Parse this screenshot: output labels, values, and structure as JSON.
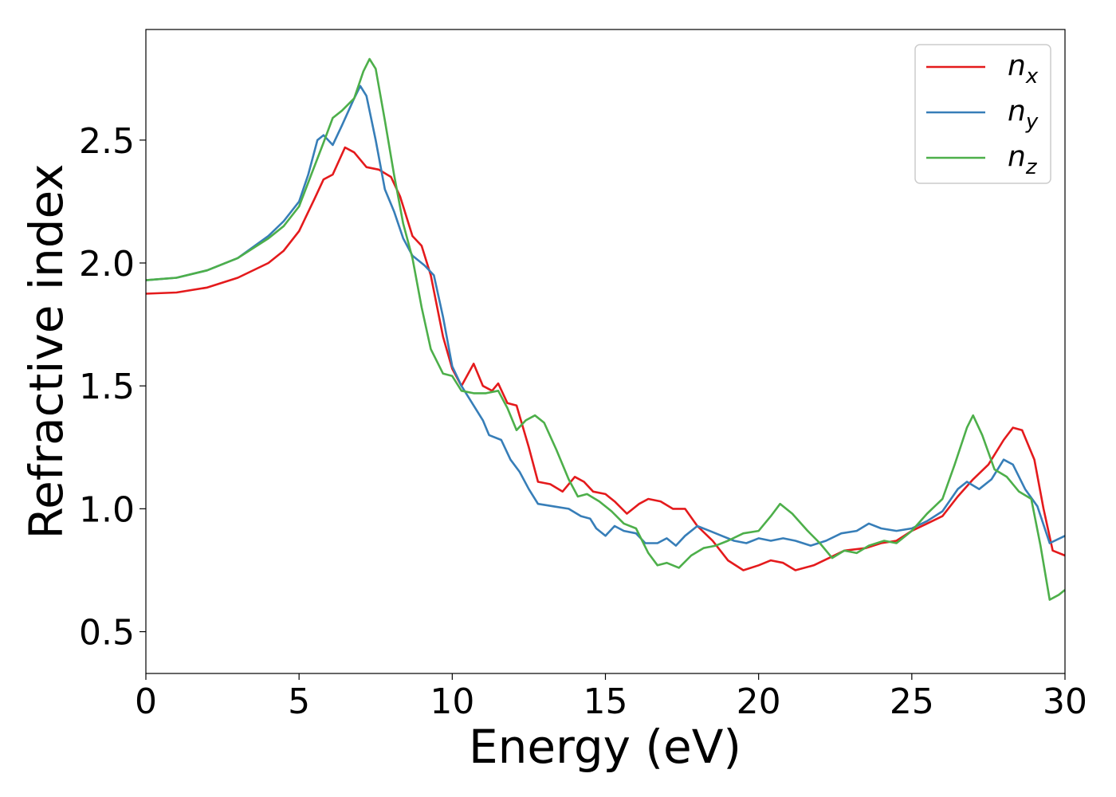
{
  "chart_data": {
    "type": "line",
    "title": "",
    "xlabel": "Energy (eV)",
    "ylabel": "Refractive index",
    "xlim": [
      0,
      30
    ],
    "ylim": [
      0.33,
      2.95
    ],
    "xticks": [
      0,
      5,
      10,
      15,
      20,
      25,
      30
    ],
    "yticks": [
      0.5,
      1.0,
      1.5,
      2.0,
      2.5
    ],
    "xtick_labels": [
      "0",
      "5",
      "10",
      "15",
      "20",
      "25",
      "30"
    ],
    "ytick_labels": [
      "0.5",
      "1.0",
      "1.5",
      "2.0",
      "2.5"
    ],
    "grid": false,
    "legend_position": "top-right",
    "series": [
      {
        "name": "n",
        "subscript": "x",
        "color": "#e41a1c",
        "points": [
          [
            0,
            1.875
          ],
          [
            1,
            1.88
          ],
          [
            2,
            1.9
          ],
          [
            3,
            1.94
          ],
          [
            4,
            2.0
          ],
          [
            4.5,
            2.05
          ],
          [
            5,
            2.13
          ],
          [
            5.5,
            2.26
          ],
          [
            5.8,
            2.34
          ],
          [
            6.1,
            2.36
          ],
          [
            6.5,
            2.47
          ],
          [
            6.8,
            2.45
          ],
          [
            7.2,
            2.39
          ],
          [
            7.6,
            2.38
          ],
          [
            8,
            2.35
          ],
          [
            8.3,
            2.27
          ],
          [
            8.7,
            2.11
          ],
          [
            9,
            2.07
          ],
          [
            9.3,
            1.95
          ],
          [
            9.7,
            1.7
          ],
          [
            10,
            1.57
          ],
          [
            10.3,
            1.5
          ],
          [
            10.7,
            1.59
          ],
          [
            11,
            1.5
          ],
          [
            11.3,
            1.48
          ],
          [
            11.5,
            1.51
          ],
          [
            11.8,
            1.43
          ],
          [
            12.1,
            1.42
          ],
          [
            12.5,
            1.25
          ],
          [
            12.8,
            1.11
          ],
          [
            13.2,
            1.1
          ],
          [
            13.6,
            1.07
          ],
          [
            14,
            1.13
          ],
          [
            14.3,
            1.11
          ],
          [
            14.6,
            1.07
          ],
          [
            15,
            1.06
          ],
          [
            15.3,
            1.03
          ],
          [
            15.7,
            0.98
          ],
          [
            16.1,
            1.02
          ],
          [
            16.4,
            1.04
          ],
          [
            16.8,
            1.03
          ],
          [
            17.2,
            1.0
          ],
          [
            17.6,
            1.0
          ],
          [
            18,
            0.93
          ],
          [
            18.5,
            0.87
          ],
          [
            19,
            0.79
          ],
          [
            19.5,
            0.75
          ],
          [
            20,
            0.77
          ],
          [
            20.4,
            0.79
          ],
          [
            20.8,
            0.78
          ],
          [
            21.2,
            0.75
          ],
          [
            21.8,
            0.77
          ],
          [
            22.3,
            0.8
          ],
          [
            22.8,
            0.83
          ],
          [
            23.5,
            0.84
          ],
          [
            24,
            0.86
          ],
          [
            24.5,
            0.87
          ],
          [
            25,
            0.91
          ],
          [
            25.5,
            0.94
          ],
          [
            26,
            0.97
          ],
          [
            26.5,
            1.05
          ],
          [
            27,
            1.12
          ],
          [
            27.5,
            1.18
          ],
          [
            28,
            1.28
          ],
          [
            28.3,
            1.33
          ],
          [
            28.6,
            1.32
          ],
          [
            29,
            1.2
          ],
          [
            29.3,
            1.0
          ],
          [
            29.6,
            0.83
          ],
          [
            30,
            0.81
          ]
        ]
      },
      {
        "name": "n",
        "subscript": "y",
        "color": "#377eb8",
        "points": [
          [
            0,
            1.93
          ],
          [
            1,
            1.94
          ],
          [
            2,
            1.97
          ],
          [
            3,
            2.02
          ],
          [
            4,
            2.11
          ],
          [
            4.5,
            2.17
          ],
          [
            5,
            2.25
          ],
          [
            5.3,
            2.36
          ],
          [
            5.6,
            2.5
          ],
          [
            5.8,
            2.52
          ],
          [
            6.1,
            2.48
          ],
          [
            6.4,
            2.56
          ],
          [
            6.8,
            2.67
          ],
          [
            7,
            2.72
          ],
          [
            7.2,
            2.68
          ],
          [
            7.5,
            2.5
          ],
          [
            7.8,
            2.3
          ],
          [
            8.1,
            2.21
          ],
          [
            8.4,
            2.1
          ],
          [
            8.7,
            2.03
          ],
          [
            9.1,
            1.99
          ],
          [
            9.4,
            1.95
          ],
          [
            9.7,
            1.78
          ],
          [
            10,
            1.58
          ],
          [
            10.3,
            1.5
          ],
          [
            10.7,
            1.42
          ],
          [
            11,
            1.36
          ],
          [
            11.2,
            1.3
          ],
          [
            11.6,
            1.28
          ],
          [
            11.9,
            1.2
          ],
          [
            12.2,
            1.15
          ],
          [
            12.5,
            1.08
          ],
          [
            12.8,
            1.02
          ],
          [
            13.3,
            1.01
          ],
          [
            13.8,
            1.0
          ],
          [
            14.2,
            0.97
          ],
          [
            14.5,
            0.96
          ],
          [
            14.7,
            0.92
          ],
          [
            15,
            0.89
          ],
          [
            15.3,
            0.93
          ],
          [
            15.6,
            0.91
          ],
          [
            16,
            0.9
          ],
          [
            16.3,
            0.86
          ],
          [
            16.7,
            0.86
          ],
          [
            17,
            0.88
          ],
          [
            17.3,
            0.85
          ],
          [
            17.6,
            0.89
          ],
          [
            18,
            0.93
          ],
          [
            18.4,
            0.91
          ],
          [
            18.8,
            0.89
          ],
          [
            19.2,
            0.87
          ],
          [
            19.6,
            0.86
          ],
          [
            20,
            0.88
          ],
          [
            20.4,
            0.87
          ],
          [
            20.8,
            0.88
          ],
          [
            21.2,
            0.87
          ],
          [
            21.7,
            0.85
          ],
          [
            22.2,
            0.87
          ],
          [
            22.7,
            0.9
          ],
          [
            23.2,
            0.91
          ],
          [
            23.6,
            0.94
          ],
          [
            24,
            0.92
          ],
          [
            24.5,
            0.91
          ],
          [
            25,
            0.92
          ],
          [
            25.5,
            0.95
          ],
          [
            26,
            0.99
          ],
          [
            26.5,
            1.08
          ],
          [
            26.8,
            1.11
          ],
          [
            27.2,
            1.08
          ],
          [
            27.6,
            1.12
          ],
          [
            28,
            1.2
          ],
          [
            28.3,
            1.18
          ],
          [
            28.7,
            1.08
          ],
          [
            29.1,
            1.01
          ],
          [
            29.5,
            0.86
          ],
          [
            30,
            0.89
          ]
        ]
      },
      {
        "name": "n",
        "subscript": "z",
        "color": "#4daf4a",
        "points": [
          [
            0,
            1.93
          ],
          [
            1,
            1.94
          ],
          [
            2,
            1.97
          ],
          [
            3,
            2.02
          ],
          [
            4,
            2.1
          ],
          [
            4.5,
            2.15
          ],
          [
            5,
            2.23
          ],
          [
            5.4,
            2.36
          ],
          [
            5.8,
            2.49
          ],
          [
            6.1,
            2.59
          ],
          [
            6.4,
            2.62
          ],
          [
            6.8,
            2.67
          ],
          [
            7.1,
            2.78
          ],
          [
            7.3,
            2.83
          ],
          [
            7.5,
            2.79
          ],
          [
            7.8,
            2.58
          ],
          [
            8.1,
            2.36
          ],
          [
            8.4,
            2.16
          ],
          [
            8.7,
            2.02
          ],
          [
            9,
            1.82
          ],
          [
            9.3,
            1.65
          ],
          [
            9.7,
            1.55
          ],
          [
            10,
            1.54
          ],
          [
            10.3,
            1.48
          ],
          [
            10.7,
            1.47
          ],
          [
            11.1,
            1.47
          ],
          [
            11.5,
            1.48
          ],
          [
            11.8,
            1.41
          ],
          [
            12.1,
            1.32
          ],
          [
            12.4,
            1.36
          ],
          [
            12.7,
            1.38
          ],
          [
            13,
            1.35
          ],
          [
            13.4,
            1.24
          ],
          [
            13.8,
            1.12
          ],
          [
            14.1,
            1.05
          ],
          [
            14.4,
            1.06
          ],
          [
            14.8,
            1.03
          ],
          [
            15.2,
            0.99
          ],
          [
            15.6,
            0.94
          ],
          [
            16,
            0.92
          ],
          [
            16.4,
            0.82
          ],
          [
            16.7,
            0.77
          ],
          [
            17,
            0.78
          ],
          [
            17.4,
            0.76
          ],
          [
            17.8,
            0.81
          ],
          [
            18.2,
            0.84
          ],
          [
            18.6,
            0.85
          ],
          [
            19,
            0.87
          ],
          [
            19.5,
            0.9
          ],
          [
            20,
            0.91
          ],
          [
            20.4,
            0.97
          ],
          [
            20.7,
            1.02
          ],
          [
            21.1,
            0.98
          ],
          [
            21.6,
            0.91
          ],
          [
            22,
            0.86
          ],
          [
            22.4,
            0.8
          ],
          [
            22.8,
            0.83
          ],
          [
            23.2,
            0.82
          ],
          [
            23.6,
            0.85
          ],
          [
            24.1,
            0.87
          ],
          [
            24.5,
            0.86
          ],
          [
            25,
            0.91
          ],
          [
            25.5,
            0.98
          ],
          [
            26,
            1.04
          ],
          [
            26.4,
            1.18
          ],
          [
            26.8,
            1.33
          ],
          [
            27,
            1.38
          ],
          [
            27.3,
            1.3
          ],
          [
            27.7,
            1.16
          ],
          [
            28.1,
            1.13
          ],
          [
            28.5,
            1.07
          ],
          [
            28.9,
            1.04
          ],
          [
            29.2,
            0.85
          ],
          [
            29.5,
            0.63
          ],
          [
            29.8,
            0.65
          ],
          [
            30,
            0.67
          ]
        ]
      }
    ]
  }
}
